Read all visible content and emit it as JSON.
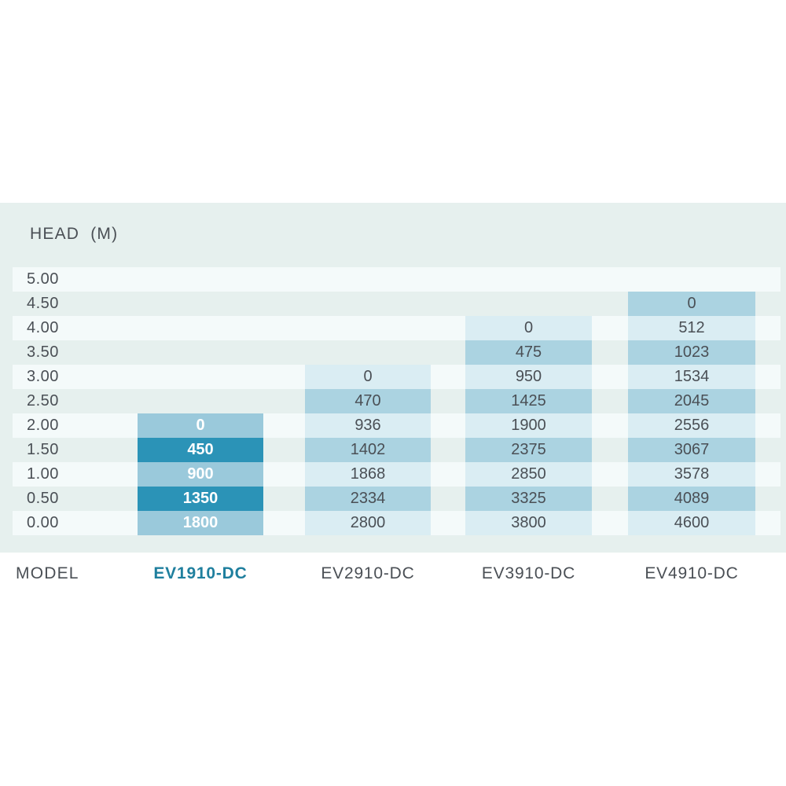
{
  "colors": {
    "page-bg": "#ffffff",
    "table-bg": "#e6f0ee",
    "stripe": "#f4fafa",
    "cell-light": "#daedf3",
    "cell-medium": "#abd3e1",
    "hl-cell-light": "#9ac9db",
    "hl-cell-dark": "#2b93b7",
    "hl-cell-text": "#ffffff",
    "text": "#4a4f55",
    "accent": "#1f7f9e"
  },
  "table": {
    "title": "HEAD  (M)"
  },
  "model_row": {
    "label": "MODEL"
  },
  "chart_data": {
    "type": "table",
    "title": "HEAD (M)",
    "row_axis_label": "HEAD (M)",
    "column_axis_label": "MODEL",
    "heads": [
      "5.00",
      "4.50",
      "4.00",
      "3.50",
      "3.00",
      "2.50",
      "2.00",
      "1.50",
      "1.00",
      "0.50",
      "0.00"
    ],
    "columns": [
      {
        "model": "EV1910-DC",
        "highlight": true,
        "values": [
          null,
          null,
          null,
          null,
          null,
          null,
          0,
          450,
          900,
          1350,
          1800
        ]
      },
      {
        "model": "EV2910-DC",
        "highlight": false,
        "values": [
          null,
          null,
          null,
          null,
          0,
          470,
          936,
          1402,
          1868,
          2334,
          2800
        ]
      },
      {
        "model": "EV3910-DC",
        "highlight": false,
        "values": [
          null,
          null,
          0,
          475,
          950,
          1425,
          1900,
          2375,
          2850,
          3325,
          3800
        ]
      },
      {
        "model": "EV4910-DC",
        "highlight": false,
        "values": [
          null,
          0,
          512,
          1023,
          1534,
          2045,
          2556,
          3067,
          3578,
          4089,
          4600
        ]
      }
    ]
  }
}
